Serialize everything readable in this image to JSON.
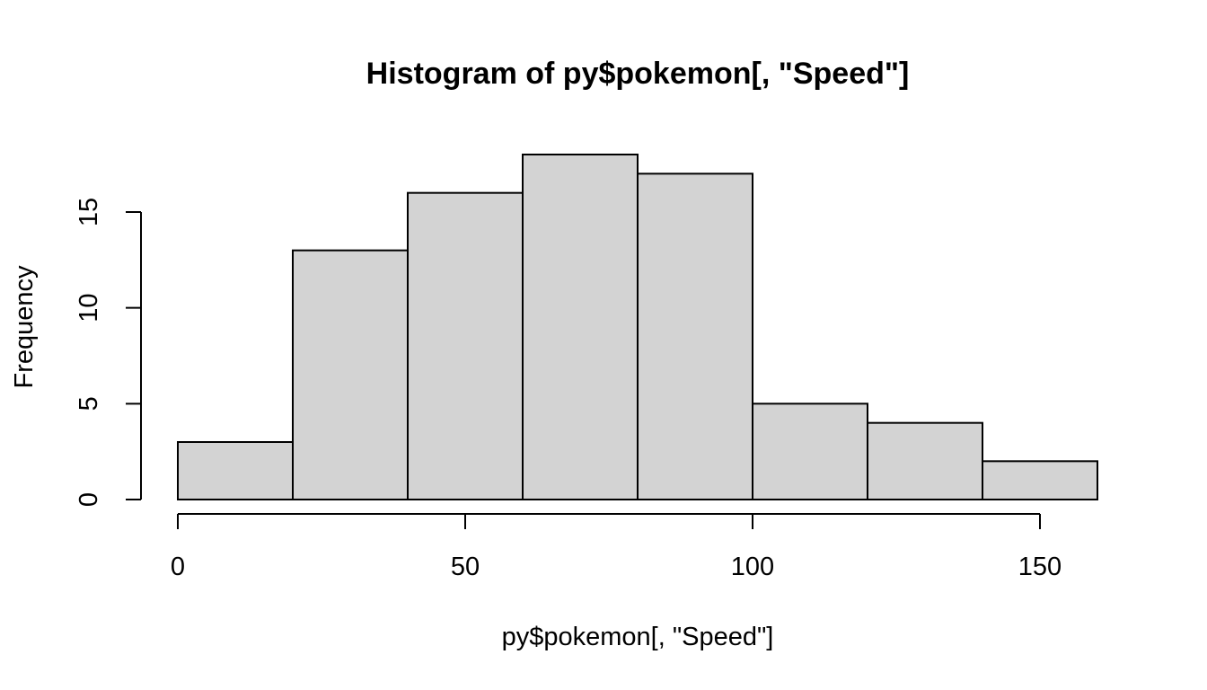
{
  "chart_data": {
    "type": "bar",
    "subtype": "histogram",
    "title": "Histogram of py$pokemon[, \"Speed\"]",
    "xlabel": "py$pokemon[, \"Speed\"]",
    "ylabel": "Frequency",
    "bins": [
      {
        "from": 0,
        "to": 20,
        "count": 3
      },
      {
        "from": 20,
        "to": 40,
        "count": 13
      },
      {
        "from": 40,
        "to": 60,
        "count": 16
      },
      {
        "from": 60,
        "to": 80,
        "count": 18
      },
      {
        "from": 80,
        "to": 100,
        "count": 17
      },
      {
        "from": 100,
        "to": 120,
        "count": 5
      },
      {
        "from": 120,
        "to": 140,
        "count": 4
      },
      {
        "from": 140,
        "to": 160,
        "count": 2
      }
    ],
    "xlim": [
      0,
      160
    ],
    "ylim": [
      0,
      18
    ],
    "x_ticks": [
      {
        "value": 0,
        "label": "0"
      },
      {
        "value": 50,
        "label": "50"
      },
      {
        "value": 100,
        "label": "100"
      },
      {
        "value": 150,
        "label": "150"
      }
    ],
    "y_ticks": [
      {
        "value": 0,
        "label": "0"
      },
      {
        "value": 5,
        "label": "5"
      },
      {
        "value": 10,
        "label": "10"
      },
      {
        "value": 15,
        "label": "15"
      }
    ],
    "bar_fill": "#d3d3d3",
    "bar_stroke": "#000000",
    "grid": false,
    "legend": "none"
  }
}
